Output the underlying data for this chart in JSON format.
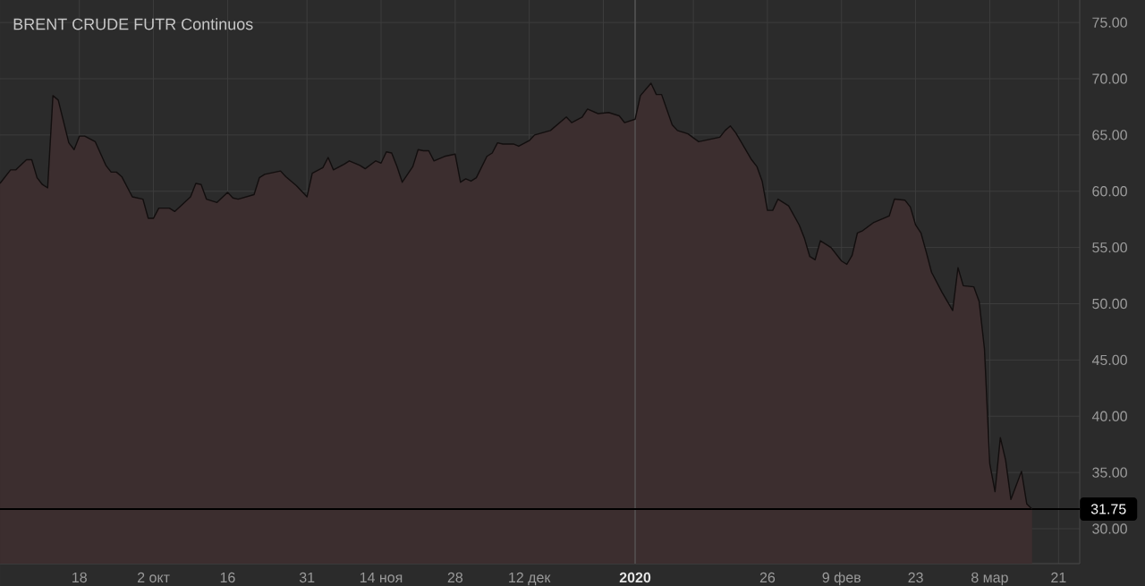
{
  "chart_data": {
    "type": "area",
    "title": "BRENT CRUDE FUTR Continuos",
    "x": [
      "2019-09-03",
      "2019-09-05",
      "2019-09-06",
      "2019-09-08",
      "2019-09-09",
      "2019-09-10",
      "2019-09-11",
      "2019-09-12",
      "2019-09-13",
      "2019-09-14",
      "2019-09-16",
      "2019-09-17",
      "2019-09-18",
      "2019-09-19",
      "2019-09-21",
      "2019-09-23",
      "2019-09-24",
      "2019-09-25",
      "2019-09-26",
      "2019-09-28",
      "2019-09-30",
      "2019-10-01",
      "2019-10-02",
      "2019-10-03",
      "2019-10-05",
      "2019-10-06",
      "2019-10-09",
      "2019-10-10",
      "2019-10-11",
      "2019-10-12",
      "2019-10-14",
      "2019-10-16",
      "2019-10-17",
      "2019-10-18",
      "2019-10-21",
      "2019-10-22",
      "2019-10-23",
      "2019-10-26",
      "2019-10-27",
      "2019-10-29",
      "2019-10-31",
      "2019-11-01",
      "2019-11-03",
      "2019-11-04",
      "2019-11-05",
      "2019-11-07",
      "2019-11-08",
      "2019-11-10",
      "2019-11-11",
      "2019-11-13",
      "2019-11-14",
      "2019-11-15",
      "2019-11-16",
      "2019-11-17",
      "2019-11-18",
      "2019-11-20",
      "2019-11-21",
      "2019-11-22",
      "2019-11-23",
      "2019-11-24",
      "2019-11-26",
      "2019-11-28",
      "2019-11-29",
      "2019-11-30",
      "2019-12-01",
      "2019-12-02",
      "2019-12-04",
      "2019-12-05",
      "2019-12-06",
      "2019-12-07",
      "2019-12-09",
      "2019-12-10",
      "2019-12-12",
      "2019-12-13",
      "2019-12-16",
      "2019-12-18",
      "2019-12-19",
      "2019-12-20",
      "2019-12-22",
      "2019-12-23",
      "2019-12-25",
      "2019-12-27",
      "2019-12-29",
      "2019-12-30",
      "2020-01-01",
      "2020-01-02",
      "2020-01-04",
      "2020-01-05",
      "2020-01-06",
      "2020-01-08",
      "2020-01-09",
      "2020-01-11",
      "2020-01-13",
      "2020-01-14",
      "2020-01-17",
      "2020-01-18",
      "2020-01-19",
      "2020-01-20",
      "2020-01-21",
      "2020-01-23",
      "2020-01-24",
      "2020-01-25",
      "2020-01-26",
      "2020-01-27",
      "2020-01-28",
      "2020-01-30",
      "2020-02-01",
      "2020-02-02",
      "2020-02-03",
      "2020-02-04",
      "2020-02-05",
      "2020-02-07",
      "2020-02-09",
      "2020-02-10",
      "2020-02-11",
      "2020-02-12",
      "2020-02-13",
      "2020-02-15",
      "2020-02-17",
      "2020-02-18",
      "2020-02-19",
      "2020-02-21",
      "2020-02-22",
      "2020-02-23",
      "2020-02-24",
      "2020-02-25",
      "2020-02-26",
      "2020-02-28",
      "2020-02-29",
      "2020-03-01",
      "2020-03-02",
      "2020-03-03",
      "2020-03-05",
      "2020-03-06",
      "2020-03-07",
      "2020-03-08",
      "2020-03-09",
      "2020-03-10",
      "2020-03-11",
      "2020-03-12",
      "2020-03-14",
      "2020-03-15",
      "2020-03-16"
    ],
    "values": [
      60.7,
      61.9,
      61.9,
      62.8,
      62.8,
      61.2,
      60.6,
      60.3,
      68.5,
      68.1,
      64.3,
      63.7,
      64.9,
      64.9,
      64.4,
      62.3,
      61.7,
      61.7,
      61.3,
      59.5,
      59.3,
      57.6,
      57.6,
      58.5,
      58.5,
      58.2,
      59.5,
      60.7,
      60.6,
      59.3,
      59.0,
      59.9,
      59.4,
      59.3,
      59.7,
      61.2,
      61.5,
      61.8,
      61.3,
      60.5,
      59.5,
      61.6,
      62.1,
      63.0,
      61.9,
      62.4,
      62.7,
      62.3,
      62.0,
      62.7,
      62.5,
      63.5,
      63.4,
      62.2,
      60.8,
      62.2,
      63.7,
      63.6,
      63.6,
      62.7,
      63.1,
      63.3,
      60.8,
      61.1,
      60.9,
      61.2,
      63.1,
      63.4,
      64.3,
      64.2,
      64.2,
      64.0,
      64.5,
      65.0,
      65.4,
      66.2,
      66.6,
      66.1,
      66.6,
      67.3,
      66.9,
      67.0,
      66.7,
      66.1,
      66.4,
      68.5,
      69.6,
      68.6,
      68.6,
      65.9,
      65.4,
      65.1,
      64.4,
      64.5,
      64.8,
      65.4,
      65.8,
      65.2,
      64.4,
      62.8,
      62.2,
      60.9,
      58.3,
      58.3,
      59.3,
      58.7,
      57.0,
      55.8,
      54.2,
      53.9,
      55.6,
      55.0,
      53.8,
      53.5,
      54.3,
      56.3,
      56.5,
      57.2,
      57.6,
      57.8,
      59.3,
      59.2,
      58.6,
      57.0,
      56.3,
      54.6,
      52.8,
      51.0,
      50.2,
      49.4,
      53.2,
      51.6,
      51.5,
      50.2,
      46.0,
      35.8,
      33.3,
      38.1,
      36.1,
      32.6,
      35.1,
      32.2,
      31.75
    ],
    "color": "#3c2e2f",
    "xlim": [
      "2019-09-03",
      "2020-03-25"
    ],
    "ylim": [
      26.9,
      77.0
    ],
    "xticks": [
      {
        "value": "2019-09-18",
        "label": "18"
      },
      {
        "value": "2019-10-02",
        "label": "2 окт"
      },
      {
        "value": "2019-10-16",
        "label": "16"
      },
      {
        "value": "2019-10-31",
        "label": "31"
      },
      {
        "value": "2019-11-14",
        "label": "14 ноя"
      },
      {
        "value": "2019-11-28",
        "label": "28"
      },
      {
        "value": "2019-12-12",
        "label": "12 дек"
      },
      {
        "value": "2019-12-26",
        "label": null
      },
      {
        "value": "2020-01-01",
        "label": "2020"
      },
      {
        "value": "2020-01-12",
        "label": null
      },
      {
        "value": "2020-01-26",
        "label": "26"
      },
      {
        "value": "2020-02-09",
        "label": "9 фев"
      },
      {
        "value": "2020-02-23",
        "label": "23"
      },
      {
        "value": "2020-03-08",
        "label": "8 мар"
      },
      {
        "value": "2020-03-21",
        "label": "21"
      }
    ],
    "yticks": [
      {
        "value": 30,
        "label": "30.00"
      },
      {
        "value": 35,
        "label": "35.00"
      },
      {
        "value": 40,
        "label": "40.00"
      },
      {
        "value": 45,
        "label": "45.00"
      },
      {
        "value": 50,
        "label": "50.00"
      },
      {
        "value": 55,
        "label": "55.00"
      },
      {
        "value": 60,
        "label": "60.00"
      },
      {
        "value": 65,
        "label": "65.00"
      },
      {
        "value": 70,
        "label": "70.00"
      },
      {
        "value": 75,
        "label": "75.00"
      }
    ],
    "grid": true,
    "ref_lines": [
      {
        "axis": "x",
        "value": "2020-01-01",
        "color": "#5c5c5c"
      },
      {
        "axis": "y",
        "value": 31.75,
        "label": "31.75",
        "color": "#000000"
      }
    ]
  }
}
